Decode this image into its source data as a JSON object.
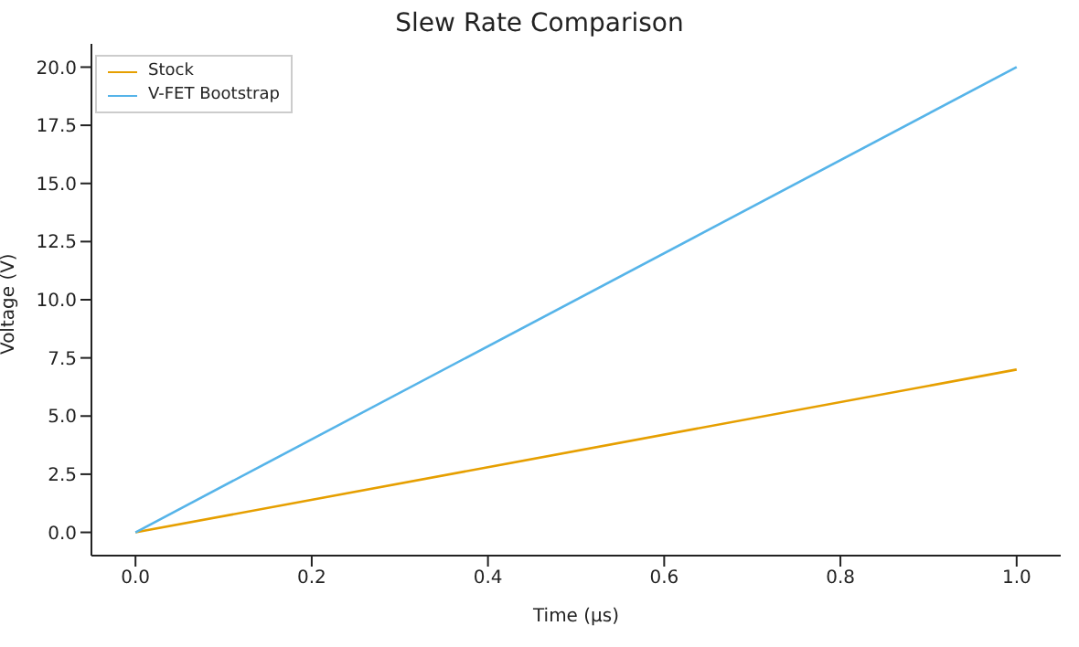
{
  "chart_data": {
    "type": "line",
    "title": "Slew Rate Comparison",
    "xlabel": "Time (µs)",
    "ylabel": "Voltage (V)",
    "x": [
      0,
      1
    ],
    "series": [
      {
        "name": "Stock",
        "color": "#e69f00",
        "values": [
          0,
          7
        ]
      },
      {
        "name": "V-FET Bootstrap",
        "color": "#56b4e9",
        "values": [
          0,
          20
        ]
      }
    ],
    "xlim": [
      -0.05,
      1.05
    ],
    "xticks": [
      {
        "value": 0,
        "label": "0.0"
      },
      {
        "value": 0.2,
        "label": "0.2"
      },
      {
        "value": 0.4,
        "label": "0.4"
      },
      {
        "value": 0.6,
        "label": "0.6"
      },
      {
        "value": 0.8,
        "label": "0.8"
      },
      {
        "value": 1,
        "label": "1.0"
      }
    ],
    "ylim": [
      -1,
      21
    ],
    "yticks": [
      {
        "value": 0,
        "label": "0.0"
      },
      {
        "value": 2.5,
        "label": "2.5"
      },
      {
        "value": 5,
        "label": "5.0"
      },
      {
        "value": 7.5,
        "label": "7.5"
      },
      {
        "value": 10,
        "label": "10.0"
      },
      {
        "value": 12.5,
        "label": "12.5"
      },
      {
        "value": 15,
        "label": "15.0"
      },
      {
        "value": 17.5,
        "label": "17.5"
      },
      {
        "value": 20,
        "label": "20.0"
      }
    ],
    "grid": false,
    "legend": "top left",
    "marker": "none",
    "line_style": "solid"
  }
}
